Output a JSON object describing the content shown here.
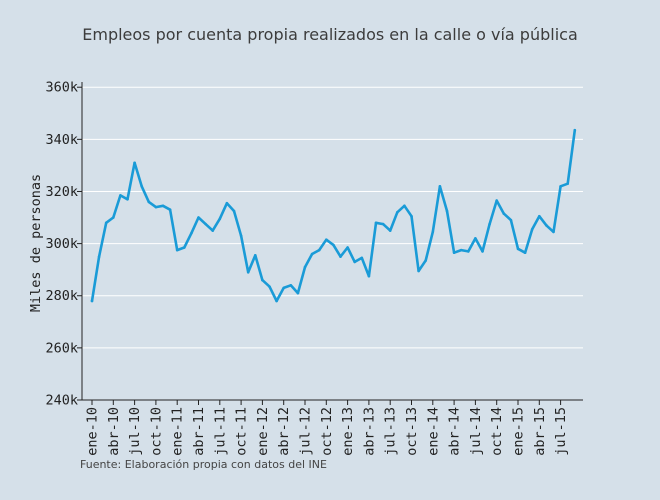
{
  "chart_data": {
    "type": "line",
    "title": "Empleos por cuenta propia realizados en la calle o vía pública",
    "xlabel": "",
    "ylabel": "Miles de personas",
    "source": "Fuente: Elaboración propia con datos del INE",
    "ylim": [
      240000,
      362000
    ],
    "y_ticks": [
      240000,
      260000,
      280000,
      300000,
      320000,
      340000,
      360000
    ],
    "y_tick_labels": [
      "240k",
      "260k",
      "280k",
      "300k",
      "320k",
      "340k",
      "360k"
    ],
    "x_tick_labels": [
      "ene-10",
      "abr-10",
      "jul-10",
      "oct-10",
      "ene-11",
      "abr-11",
      "jul-11",
      "oct-11",
      "ene-12",
      "abr-12",
      "jul-12",
      "oct-12",
      "ene-13",
      "abr-13",
      "jul-13",
      "oct-13",
      "ene-14",
      "abr-14",
      "jul-14",
      "oct-14",
      "ene-15",
      "abr-15",
      "jul-15"
    ],
    "grid": true,
    "colors": {
      "background": "#d5e0e9",
      "line": "#1a9bd7",
      "grid": "#ffffff"
    },
    "series": [
      {
        "name": "",
        "values": [
          278000,
          295000,
          308000,
          310000,
          318500,
          317000,
          331000,
          322000,
          316000,
          314000,
          314500,
          313000,
          297500,
          298500,
          304000,
          310000,
          307500,
          305000,
          309500,
          315500,
          312500,
          303000,
          289000,
          295500,
          286000,
          283500,
          278000,
          283000,
          284000,
          281000,
          291000,
          296000,
          297500,
          301500,
          299500,
          295000,
          298500,
          293000,
          294500,
          287500,
          308000,
          307500,
          305000,
          312000,
          314500,
          310500,
          289500,
          293500,
          304500,
          322000,
          312500,
          296500,
          297500,
          297000,
          302000,
          297000,
          307500,
          316500,
          311500,
          309000,
          298000,
          296500,
          305500,
          310500,
          307000,
          304500,
          322000,
          323000,
          343500
        ]
      }
    ]
  }
}
